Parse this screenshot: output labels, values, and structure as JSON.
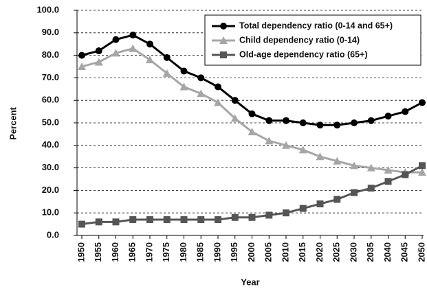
{
  "chart_data": {
    "type": "line",
    "xlabel": "Year",
    "ylabel": "Percent",
    "categories": [
      "1950",
      "1955",
      "1960",
      "1965",
      "1970",
      "1975",
      "1980",
      "1985",
      "1990",
      "1995",
      "2000",
      "2005",
      "2010",
      "2015",
      "2020",
      "2025",
      "2030",
      "2035",
      "2040",
      "2045",
      "2050"
    ],
    "series": [
      {
        "name": "Total dependency ratio (0-14 and 65+)",
        "color": "#000000",
        "marker": "circle",
        "values": [
          80,
          82,
          87,
          89,
          85,
          79,
          73,
          70,
          66,
          60,
          54,
          51,
          51,
          50,
          49,
          49,
          50,
          51,
          53,
          55,
          59
        ]
      },
      {
        "name": "Child dependency ratio (0-14)",
        "color": "#a6a6a6",
        "marker": "triangle",
        "values": [
          75,
          77,
          81,
          83,
          78,
          72,
          66,
          63,
          59,
          52,
          46,
          42,
          40,
          38,
          35,
          33,
          31,
          30,
          29,
          28,
          28
        ]
      },
      {
        "name": "Old-age dependency ratio (65+)",
        "color": "#555555",
        "marker": "square",
        "values": [
          5,
          6,
          6,
          7,
          7,
          7,
          7,
          7,
          7,
          8,
          8,
          9,
          10,
          12,
          14,
          16,
          19,
          21,
          24,
          27,
          31
        ]
      }
    ],
    "ylim": [
      0,
      100
    ],
    "yticks": [
      {
        "value": 0,
        "label": "0.0"
      },
      {
        "value": 10,
        "label": "10.0"
      },
      {
        "value": 20,
        "label": "20.0"
      },
      {
        "value": 30,
        "label": "30.0"
      },
      {
        "value": 40,
        "label": "40.0"
      },
      {
        "value": 50,
        "label": "50.0"
      },
      {
        "value": 60,
        "label": "60.0"
      },
      {
        "value": 70,
        "label": "70.0"
      },
      {
        "value": 80,
        "label": "80.0"
      },
      {
        "value": 90,
        "label": "90.0"
      },
      {
        "value": 100,
        "label": "100.0"
      }
    ],
    "grid": true,
    "legend": "upper right"
  }
}
